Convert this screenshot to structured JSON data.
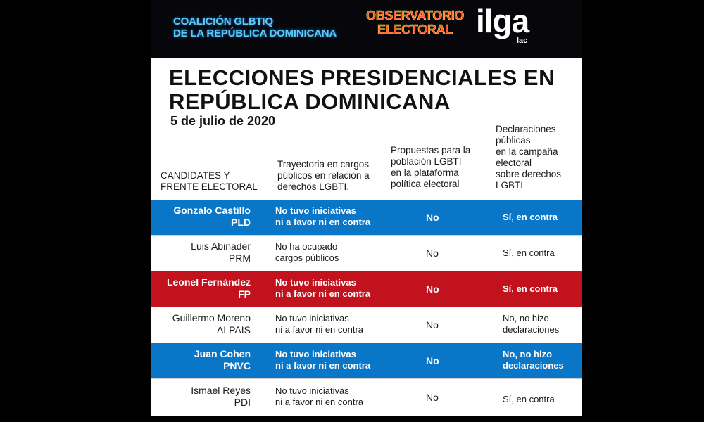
{
  "header": {
    "coalicion": [
      "COALICIÓN GLBTIQ",
      "DE LA REPÚBLICA DOMINICANA"
    ],
    "observatorio": [
      "OBSERVATORIO",
      "ELECTORAL"
    ],
    "ilga": "ilga",
    "lac": "lac"
  },
  "title_lines": [
    "ELECCIONES PRESIDENCIALES EN",
    "REPÚBLICA DOMINICANA"
  ],
  "date": "5 de julio de 2020",
  "columns": [
    [
      "CANDIDATES Y",
      "FRENTE ELECTORAL"
    ],
    [
      "Trayectoria en cargos",
      "públicos en relación a",
      "derechos LGBTI."
    ],
    [
      "Propuestas para la",
      "población LGBTI",
      "en la plataforma",
      "política electoral"
    ],
    [
      "Declaraciones",
      "públicas",
      "en la campaña",
      "electoral",
      "sobre derechos",
      "LGBTI"
    ]
  ],
  "rows": [
    {
      "name": "Gonzalo Castillo",
      "party": "PLD",
      "trayectoria": [
        "No tuvo iniciativas",
        "ni a favor ni en contra"
      ],
      "propuestas": "No",
      "declaraciones": [
        "Sí, en contra"
      ],
      "color": "#0a76c8"
    },
    {
      "name": "Luis Abinader",
      "party": "PRM",
      "trayectoria": [
        "No ha ocupado",
        "cargos públicos"
      ],
      "propuestas": "No",
      "declaraciones": [
        "Sí, en contra"
      ],
      "color": "#ffffff"
    },
    {
      "name": "Leonel Fernández",
      "party": "FP",
      "trayectoria": [
        "No tuvo iniciativas",
        "ni a favor ni en contra"
      ],
      "propuestas": "No",
      "declaraciones": [
        "Sí, en contra"
      ],
      "color": "#c2121d"
    },
    {
      "name": "Guillermo Moreno",
      "party": "ALPAIS",
      "trayectoria": [
        "No tuvo iniciativas",
        "ni a favor ni en contra"
      ],
      "propuestas": "No",
      "declaraciones": [
        "No, no hizo",
        "declaraciones"
      ],
      "color": "#ffffff"
    },
    {
      "name": "Juan Cohen",
      "party": "PNVC",
      "trayectoria": [
        "No tuvo iniciativas",
        "ni a favor ni en contra"
      ],
      "propuestas": "No",
      "declaraciones": [
        "No, no hizo",
        "declaraciones"
      ],
      "color": "#0a76c8"
    },
    {
      "name": "Ismael Reyes",
      "party": "PDI",
      "trayectoria": [
        "No tuvo iniciativas",
        "ni a favor ni en contra"
      ],
      "propuestas": "No",
      "declaraciones": [
        "Sí, en contra"
      ],
      "color": "#ffffff"
    }
  ]
}
